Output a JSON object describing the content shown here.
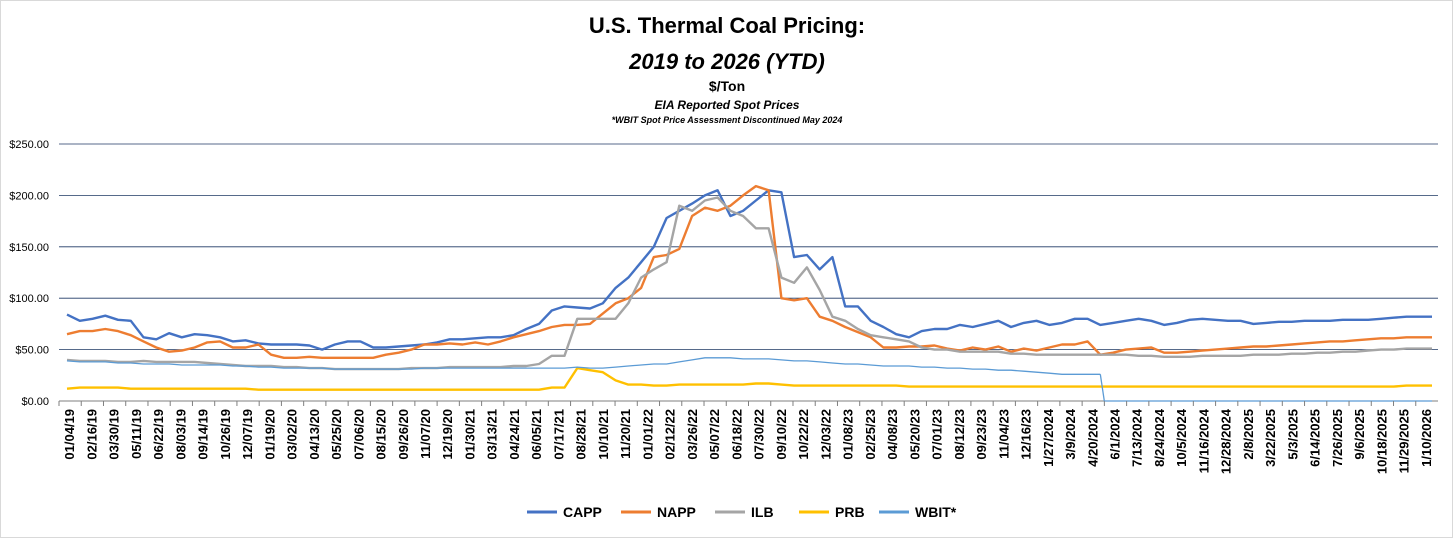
{
  "chart_data": {
    "type": "line",
    "title": "U.S. Thermal Coal Pricing:",
    "subtitle": "2019 to 2026 (YTD)",
    "unit_label": "$/Ton",
    "source_note": "EIA Reported Spot Prices",
    "footnote": "*WBIT Spot Price Assessment Discontinued May 2024",
    "xlabel": "",
    "ylabel": "",
    "ylim": [
      0,
      250
    ],
    "y_ticks": [
      "$0.00",
      "$50.00",
      "$100.00",
      "$150.00",
      "$200.00",
      "$250.00"
    ],
    "x_tick_labels": [
      "01/04/19",
      "02/16/19",
      "03/30/19",
      "05/11/19",
      "06/22/19",
      "08/03/19",
      "09/14/19",
      "10/26/19",
      "12/07/19",
      "01/19/20",
      "03/02/20",
      "04/13/20",
      "05/25/20",
      "07/06/20",
      "08/15/20",
      "09/26/20",
      "11/07/20",
      "12/19/20",
      "01/30/21",
      "03/13/21",
      "04/24/21",
      "06/05/21",
      "07/17/21",
      "08/28/21",
      "10/10/21",
      "11/20/21",
      "01/01/22",
      "02/12/22",
      "03/26/22",
      "05/07/22",
      "06/18/22",
      "07/30/22",
      "09/10/22",
      "10/22/22",
      "12/03/22",
      "01/08/23",
      "02/25/23",
      "04/08/23",
      "05/20/23",
      "07/01/23",
      "08/12/23",
      "09/23/23",
      "11/04/23",
      "12/16/23",
      "1/27/2024",
      "3/9/2024",
      "4/20/2024",
      "6/1/2024",
      "7/13/2024",
      "8/24/2024",
      "10/5/2024",
      "11/16/2024",
      "12/28/2024",
      "2/8/2025",
      "3/22/2025",
      "5/3/2025",
      "6/14/2025",
      "7/26/2025",
      "9/6/2025",
      "10/18/2025",
      "11/29/2025",
      "1/10/2026"
    ],
    "grid": "horizontal",
    "legend": "bottom",
    "series": [
      {
        "name": "CAPP",
        "color": "#4472c4",
        "values": [
          84,
          78,
          80,
          83,
          79,
          78,
          62,
          60,
          66,
          62,
          65,
          64,
          62,
          58,
          59,
          56,
          55,
          55,
          55,
          54,
          50,
          55,
          58,
          58,
          52,
          52,
          53,
          54,
          55,
          57,
          60,
          60,
          61,
          62,
          62,
          64,
          70,
          75,
          88,
          92,
          91,
          90,
          95,
          110,
          120,
          135,
          150,
          178,
          185,
          192,
          200,
          205,
          180,
          185,
          195,
          205,
          203,
          140,
          142,
          128,
          140,
          92,
          92,
          78,
          72,
          65,
          62,
          68,
          70,
          70,
          74,
          72,
          75,
          78,
          72,
          76,
          78,
          74,
          76,
          80,
          80,
          74,
          76,
          78,
          80,
          78,
          74,
          76,
          79,
          80,
          79,
          78,
          78,
          75,
          76,
          77,
          77,
          78,
          78,
          78,
          79,
          79,
          79,
          80,
          81,
          82,
          82,
          82
        ]
      },
      {
        "name": "NAPP",
        "color": "#ed7d31",
        "values": [
          65,
          68,
          68,
          70,
          68,
          64,
          58,
          52,
          48,
          49,
          52,
          57,
          58,
          52,
          52,
          55,
          45,
          42,
          42,
          43,
          42,
          42,
          42,
          42,
          42,
          45,
          47,
          50,
          55,
          55,
          56,
          55,
          57,
          55,
          58,
          62,
          65,
          68,
          72,
          74,
          74,
          75,
          85,
          95,
          100,
          110,
          140,
          142,
          148,
          180,
          188,
          185,
          190,
          200,
          209,
          205,
          100,
          98,
          100,
          82,
          78,
          72,
          67,
          62,
          52,
          52,
          53,
          53,
          54,
          51,
          49,
          52,
          50,
          53,
          48,
          51,
          49,
          52,
          55,
          55,
          58,
          45,
          47,
          50,
          51,
          52,
          47,
          47,
          48,
          49,
          50,
          51,
          52,
          53,
          53,
          54,
          55,
          56,
          57,
          58,
          58,
          59,
          60,
          61,
          61,
          62,
          62,
          62
        ]
      },
      {
        "name": "ILB",
        "color": "#a5a5a5",
        "values": [
          40,
          39,
          39,
          39,
          38,
          38,
          39,
          38,
          38,
          38,
          38,
          37,
          36,
          35,
          34,
          34,
          34,
          33,
          33,
          32,
          32,
          31,
          31,
          31,
          31,
          31,
          31,
          32,
          32,
          32,
          33,
          33,
          33,
          33,
          33,
          34,
          34,
          36,
          44,
          44,
          80,
          80,
          80,
          80,
          95,
          120,
          128,
          135,
          190,
          185,
          195,
          198,
          185,
          180,
          168,
          168,
          120,
          115,
          130,
          108,
          82,
          78,
          70,
          64,
          62,
          60,
          58,
          52,
          50,
          50,
          48,
          48,
          48,
          48,
          46,
          46,
          45,
          45,
          45,
          45,
          45,
          45,
          45,
          45,
          44,
          44,
          43,
          43,
          43,
          44,
          44,
          44,
          44,
          45,
          45,
          45,
          46,
          46,
          47,
          47,
          48,
          48,
          49,
          50,
          50,
          51,
          51,
          51
        ]
      },
      {
        "name": "PRB",
        "color": "#ffc000",
        "values": [
          12,
          13,
          13,
          13,
          13,
          12,
          12,
          12,
          12,
          12,
          12,
          12,
          12,
          12,
          12,
          11,
          11,
          11,
          11,
          11,
          11,
          11,
          11,
          11,
          11,
          11,
          11,
          11,
          11,
          11,
          11,
          11,
          11,
          11,
          11,
          11,
          11,
          11,
          13,
          13,
          32,
          30,
          28,
          20,
          16,
          16,
          15,
          15,
          16,
          16,
          16,
          16,
          16,
          16,
          17,
          17,
          16,
          15,
          15,
          15,
          15,
          15,
          15,
          15,
          15,
          15,
          14,
          14,
          14,
          14,
          14,
          14,
          14,
          14,
          14,
          14,
          14,
          14,
          14,
          14,
          14,
          14,
          14,
          14,
          14,
          14,
          14,
          14,
          14,
          14,
          14,
          14,
          14,
          14,
          14,
          14,
          14,
          14,
          14,
          14,
          14,
          14,
          14,
          14,
          14,
          15,
          15,
          15
        ]
      },
      {
        "name": "WBIT*",
        "color": "#5b9bd5",
        "values": [
          39,
          38,
          38,
          38,
          37,
          37,
          36,
          36,
          36,
          35,
          35,
          35,
          35,
          34,
          34,
          33,
          33,
          32,
          32,
          32,
          32,
          31,
          31,
          31,
          31,
          31,
          31,
          31,
          32,
          32,
          32,
          32,
          32,
          32,
          32,
          32,
          32,
          32,
          32,
          32,
          33,
          32,
          32,
          33,
          34,
          35,
          36,
          36,
          38,
          40,
          42,
          42,
          42,
          41,
          41,
          41,
          40,
          39,
          39,
          38,
          37,
          36,
          36,
          35,
          34,
          34,
          34,
          33,
          33,
          32,
          32,
          31,
          31,
          30,
          30,
          29,
          28,
          27,
          26,
          26,
          26,
          26,
          null,
          null,
          null,
          null,
          null,
          null,
          null,
          null,
          null,
          null,
          null,
          null,
          null,
          null,
          null,
          null,
          null,
          null,
          null,
          null,
          null,
          null,
          null,
          null,
          null,
          null
        ]
      }
    ]
  }
}
